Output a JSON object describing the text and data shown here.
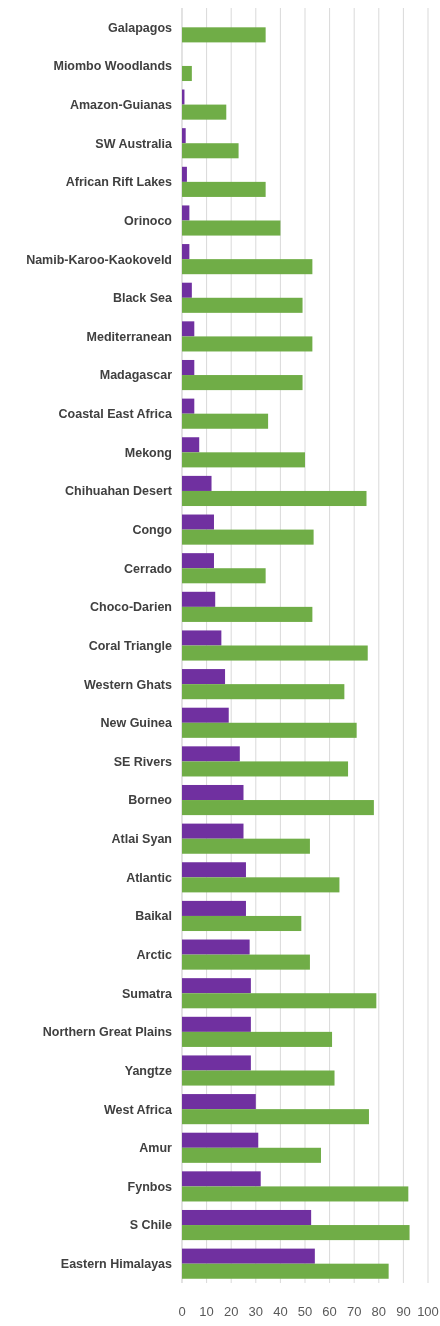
{
  "chart_data": {
    "type": "bar",
    "orientation": "horizontal",
    "categories": [
      "Galapagos",
      "Miombo Woodlands",
      "Amazon-Guianas",
      "SW Australia",
      "African Rift Lakes",
      "Orinoco",
      "Namib-Karoo-Kaokoveld",
      "Black Sea",
      "Mediterranean",
      "Madagascar",
      "Coastal East Africa",
      "Mekong",
      "Chihuahan Desert",
      "Congo",
      "Cerrado",
      "Choco-Darien",
      "Coral Triangle",
      "Western Ghats",
      "New Guinea",
      "SE Rivers",
      "Borneo",
      "Atlai Syan",
      "Atlantic",
      "Baikal",
      "Arctic",
      "Sumatra",
      "Northern Great Plains",
      "Yangtze",
      "West Africa",
      "Amur",
      "Fynbos",
      "S Chile",
      "Eastern Himalayas"
    ],
    "series": [
      {
        "color": "#7030a0",
        "values": [
          null,
          null,
          1,
          1.5,
          2,
          3,
          3,
          4,
          5,
          5,
          5,
          7,
          12,
          13,
          13,
          13.5,
          16,
          17.5,
          19,
          23.5,
          25,
          25,
          26,
          26,
          27.5,
          28,
          28,
          28,
          30,
          31,
          32,
          52.5,
          54
        ]
      },
      {
        "color": "#70ad47",
        "values": [
          34,
          4,
          18,
          23,
          34,
          40,
          53,
          49,
          53,
          49,
          35,
          50,
          75,
          53.5,
          34,
          53,
          75.5,
          66,
          71,
          67.5,
          78,
          52,
          64,
          48.5,
          52,
          79,
          61,
          62,
          76,
          56.5,
          92,
          92.5,
          84
        ]
      }
    ],
    "xlim": [
      0,
      100
    ],
    "xticks": [
      0,
      10,
      20,
      30,
      40,
      50,
      60,
      70,
      80,
      90,
      100
    ],
    "grid": "x"
  }
}
